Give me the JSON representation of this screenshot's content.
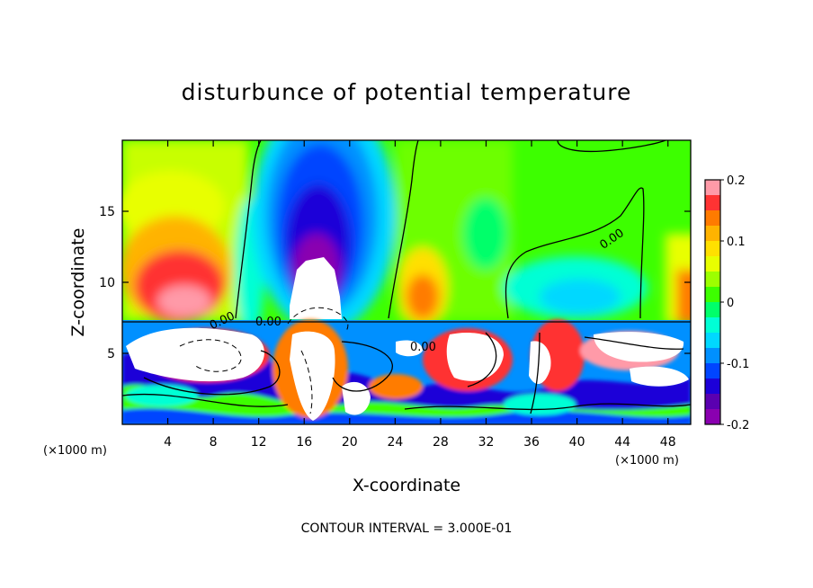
{
  "chart_data": {
    "type": "heatmap",
    "title": "disturbunce of potential temperature",
    "xlabel": "X-coordinate",
    "ylabel": "Z-coordinate",
    "x_unit_left": "(×1000 m)",
    "x_unit_right": "(×1000 m)",
    "xlim": [
      0,
      50
    ],
    "ylim": [
      0,
      20
    ],
    "x_ticks": [
      4,
      8,
      12,
      16,
      20,
      24,
      28,
      32,
      36,
      40,
      44,
      48
    ],
    "y_ticks": [
      5,
      10,
      15
    ],
    "colorbar": {
      "range": [
        -0.2,
        0.2
      ],
      "tick_values": [
        0.2,
        0.1,
        0,
        -0.1,
        -0.2
      ],
      "tick_labels": [
        "0.2",
        "0.1",
        "0",
        "-0.1",
        "-0.2"
      ],
      "colors": [
        "#ff9aa8",
        "#ff3333",
        "#ff7b00",
        "#ffb300",
        "#ffe000",
        "#e8ff00",
        "#9cff00",
        "#3dff00",
        "#00ff6a",
        "#00ffd5",
        "#00d8ff",
        "#0090ff",
        "#0045ff",
        "#1c00d8",
        "#5a00b0",
        "#8a00b0"
      ]
    },
    "contour_labels": [
      "0.00",
      "0.00",
      "0.00",
      "0.00"
    ],
    "contour_interval_text": "CONTOUR INTERVAL = 3.000E-01",
    "features": [
      {
        "kind": "warm",
        "x": 6,
        "z": 11,
        "value": 0.18
      },
      {
        "kind": "warm",
        "x": 4,
        "z": 14,
        "value": 0.08
      },
      {
        "kind": "cold",
        "x": 18.5,
        "z": 13,
        "value": -0.2
      },
      {
        "kind": "cold",
        "x": 18.5,
        "z": 17,
        "value": -0.12
      },
      {
        "kind": "warm",
        "x": 27,
        "z": 10,
        "value": 0.09
      },
      {
        "kind": "cold",
        "x": 40,
        "z": 10,
        "value": -0.05
      }
    ]
  }
}
